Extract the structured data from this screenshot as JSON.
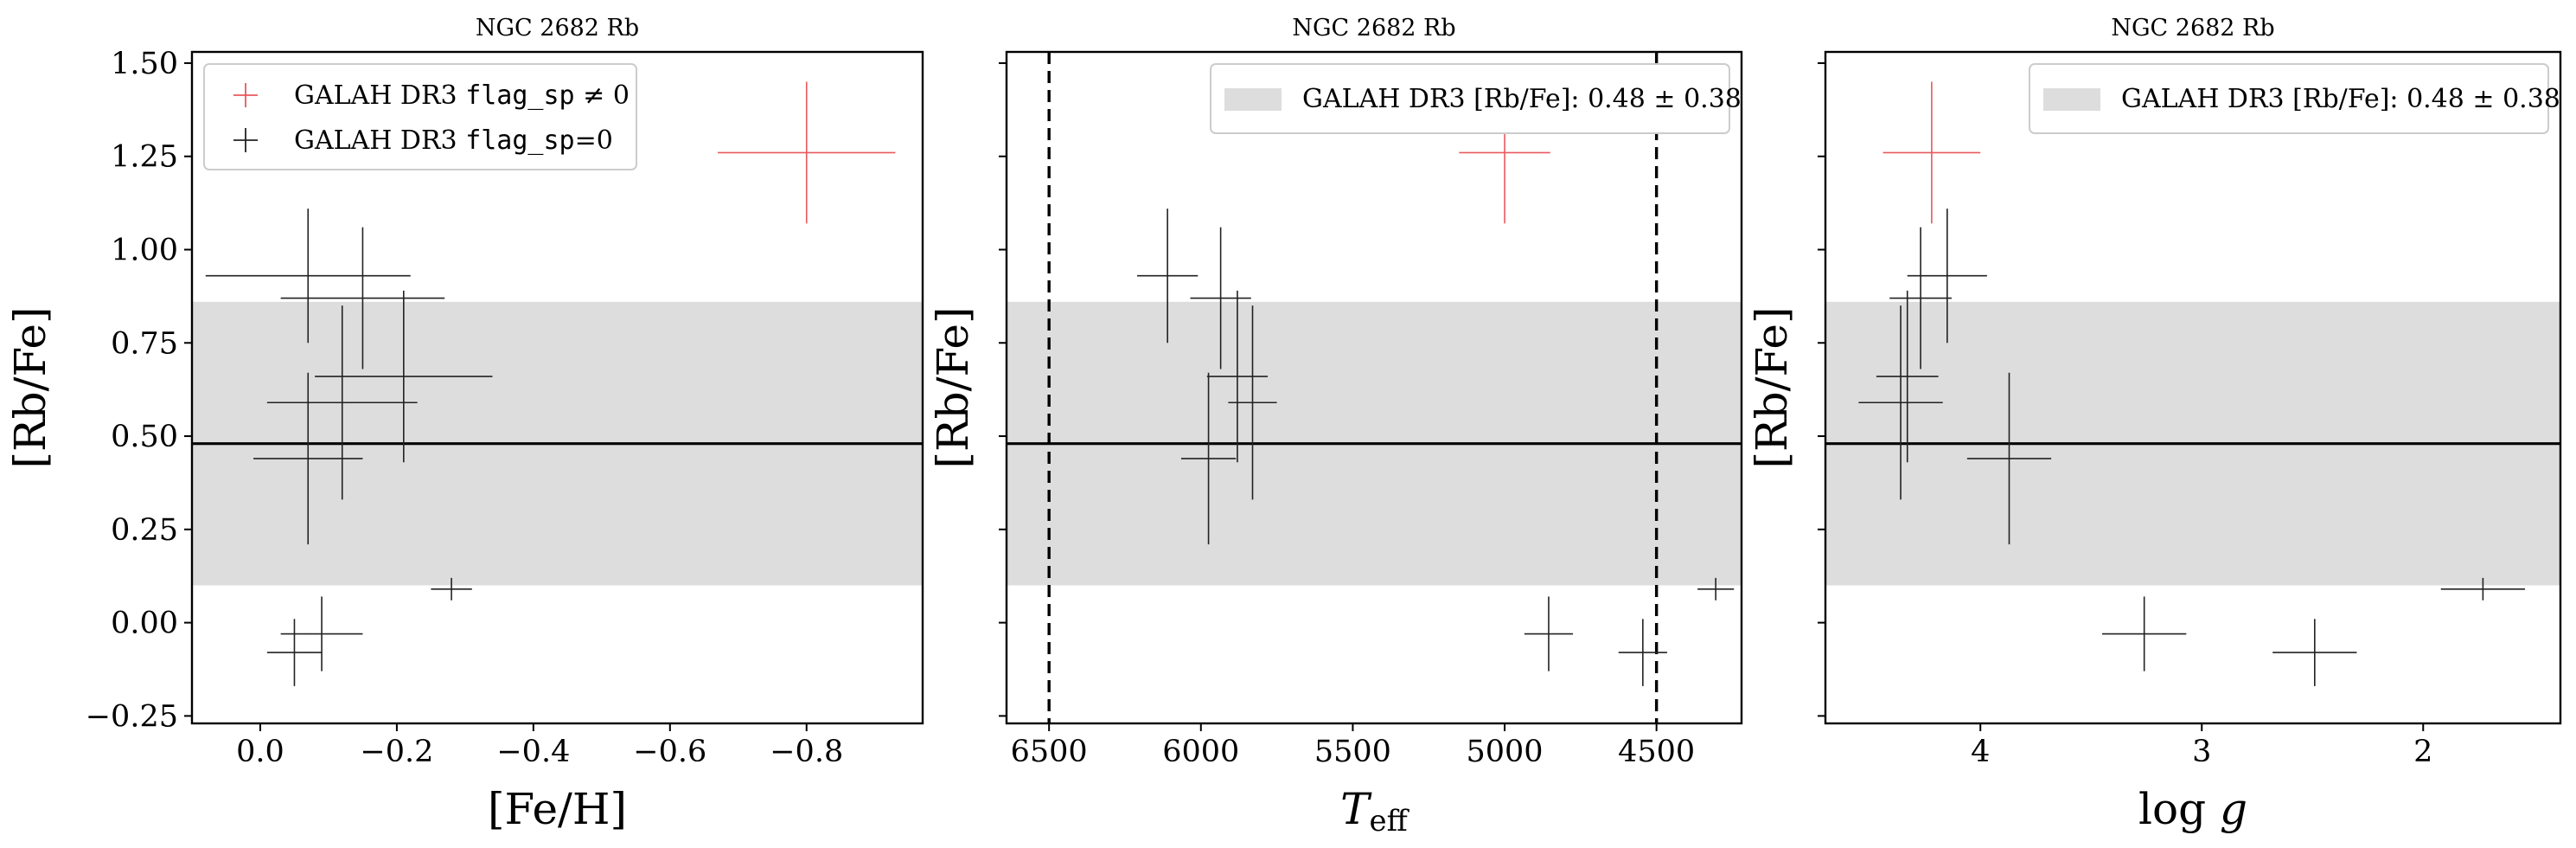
{
  "chart_data": [
    {
      "type": "scatter",
      "title": "NGC 2682 Rb",
      "xlabel": "[Fe/H]",
      "ylabel": "[Rb/Fe]",
      "xlim": [
        0.1,
        -0.97
      ],
      "ylim": [
        -0.27,
        1.53
      ],
      "xticks": [
        0.0,
        -0.2,
        -0.4,
        -0.6,
        -0.8
      ],
      "xtick_labels": [
        "0.0",
        "−0.2",
        "−0.4",
        "−0.6",
        "−0.8"
      ],
      "yticks": [
        -0.25,
        0.0,
        0.25,
        0.5,
        0.75,
        1.0,
        1.25,
        1.5
      ],
      "ytick_labels": [
        "−0.25",
        "0.00",
        "0.25",
        "0.50",
        "0.75",
        "1.00",
        "1.25",
        "1.50"
      ],
      "show_ytick_labels": true,
      "band": {
        "y": 0.48,
        "err": 0.38,
        "color": "#dddddd"
      },
      "legend": {
        "position": "upper left",
        "entries": [
          {
            "prefix": "GALAH DR3 ",
            "code": "flag_sp",
            "suffix": " ≠ 0",
            "color": "#e8585e"
          },
          {
            "prefix": "GALAH DR3 ",
            "code": "flag_sp",
            "suffix": "=0",
            "color": "#222222"
          }
        ]
      },
      "series": [
        {
          "name": "GALAH DR3 flag_sp ≠ 0",
          "color": "#e8585e",
          "points": [
            {
              "x": -0.8,
              "y": 1.26,
              "xerr": 0.13,
              "yerr": 0.19
            }
          ]
        },
        {
          "name": "GALAH DR3 flag_sp=0",
          "color": "#222222",
          "points": [
            {
              "x": -0.07,
              "y": 0.93,
              "xerr": 0.15,
              "yerr": 0.18
            },
            {
              "x": -0.15,
              "y": 0.87,
              "xerr": 0.12,
              "yerr": 0.19
            },
            {
              "x": -0.12,
              "y": 0.59,
              "xerr": 0.11,
              "yerr": 0.26
            },
            {
              "x": -0.21,
              "y": 0.66,
              "xerr": 0.13,
              "yerr": 0.23
            },
            {
              "x": -0.07,
              "y": 0.44,
              "xerr": 0.08,
              "yerr": 0.23
            },
            {
              "x": -0.28,
              "y": 0.09,
              "xerr": 0.03,
              "yerr": 0.03
            },
            {
              "x": -0.05,
              "y": -0.08,
              "xerr": 0.04,
              "yerr": 0.09
            },
            {
              "x": -0.09,
              "y": -0.03,
              "xerr": 0.06,
              "yerr": 0.1
            }
          ]
        }
      ]
    },
    {
      "type": "scatter",
      "title": "NGC 2682 Rb",
      "xlabel": "T_eff",
      "ylabel": "[Rb/Fe]",
      "xlim": [
        6640,
        4220
      ],
      "ylim": [
        -0.27,
        1.53
      ],
      "xticks": [
        6500,
        6000,
        5500,
        5000,
        4500
      ],
      "xtick_labels": [
        "6500",
        "6000",
        "5500",
        "5000",
        "4500"
      ],
      "yticks": [
        -0.25,
        0.0,
        0.25,
        0.5,
        0.75,
        1.0,
        1.25,
        1.5
      ],
      "show_ytick_labels": false,
      "vlines": [
        6500,
        4500
      ],
      "band": {
        "y": 0.48,
        "err": 0.38,
        "color": "#dddddd"
      },
      "legend": {
        "position": "upper right",
        "entries": [
          {
            "prefix": "GALAH DR3 [Rb/Fe]: ",
            "code": "",
            "suffix": "0.48 ± 0.38",
            "color": "#dddddd",
            "swatch": true
          }
        ]
      },
      "series": [
        {
          "name": "GALAH DR3 flag_sp ≠ 0",
          "color": "#e8585e",
          "points": [
            {
              "x": 5000,
              "y": 1.26,
              "xerr": 150,
              "yerr": 0.19
            }
          ]
        },
        {
          "name": "GALAH DR3 flag_sp=0",
          "color": "#222222",
          "points": [
            {
              "x": 6110,
              "y": 0.93,
              "xerr": 100,
              "yerr": 0.18
            },
            {
              "x": 5935,
              "y": 0.87,
              "xerr": 100,
              "yerr": 0.19
            },
            {
              "x": 5830,
              "y": 0.59,
              "xerr": 80,
              "yerr": 0.26
            },
            {
              "x": 5880,
              "y": 0.66,
              "xerr": 100,
              "yerr": 0.23
            },
            {
              "x": 5975,
              "y": 0.44,
              "xerr": 90,
              "yerr": 0.23
            },
            {
              "x": 4855,
              "y": -0.03,
              "xerr": 80,
              "yerr": 0.1
            },
            {
              "x": 4545,
              "y": -0.08,
              "xerr": 80,
              "yerr": 0.09
            },
            {
              "x": 4305,
              "y": 0.09,
              "xerr": 60,
              "yerr": 0.03
            }
          ]
        }
      ]
    },
    {
      "type": "scatter",
      "title": "NGC 2682 Rb",
      "xlabel": "log g",
      "ylabel": "[Rb/Fe]",
      "xlim": [
        4.7,
        1.38
      ],
      "ylim": [
        -0.27,
        1.53
      ],
      "xticks": [
        4,
        3,
        2
      ],
      "xtick_labels": [
        "4",
        "3",
        "2"
      ],
      "yticks": [
        -0.25,
        0.0,
        0.25,
        0.5,
        0.75,
        1.0,
        1.25,
        1.5
      ],
      "show_ytick_labels": false,
      "band": {
        "y": 0.48,
        "err": 0.38,
        "color": "#dddddd"
      },
      "legend": {
        "position": "upper right",
        "entries": [
          {
            "prefix": "GALAH DR3 [Rb/Fe]: ",
            "code": "",
            "suffix": "0.48 ± 0.38",
            "color": "#dddddd",
            "swatch": true
          }
        ]
      },
      "series": [
        {
          "name": "GALAH DR3 flag_sp ≠ 0",
          "color": "#e8585e",
          "points": [
            {
              "x": 4.22,
              "y": 1.26,
              "xerr": 0.22,
              "yerr": 0.19
            }
          ]
        },
        {
          "name": "GALAH DR3 flag_sp=0",
          "color": "#222222",
          "points": [
            {
              "x": 4.15,
              "y": 0.93,
              "xerr": 0.18,
              "yerr": 0.18
            },
            {
              "x": 4.27,
              "y": 0.87,
              "xerr": 0.14,
              "yerr": 0.19
            },
            {
              "x": 4.36,
              "y": 0.59,
              "xerr": 0.19,
              "yerr": 0.26
            },
            {
              "x": 4.33,
              "y": 0.66,
              "xerr": 0.14,
              "yerr": 0.23
            },
            {
              "x": 3.87,
              "y": 0.44,
              "xerr": 0.19,
              "yerr": 0.23
            },
            {
              "x": 3.26,
              "y": -0.03,
              "xerr": 0.19,
              "yerr": 0.1
            },
            {
              "x": 2.49,
              "y": -0.08,
              "xerr": 0.19,
              "yerr": 0.09
            },
            {
              "x": 1.73,
              "y": 0.09,
              "xerr": 0.19,
              "yerr": 0.03
            }
          ]
        }
      ]
    }
  ]
}
